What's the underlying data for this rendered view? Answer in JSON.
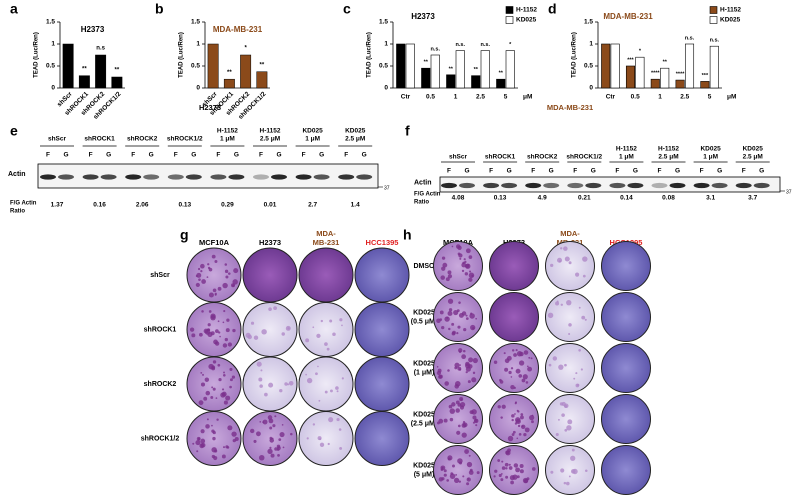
{
  "chart_data": [
    {
      "type": "bar",
      "panel": "a",
      "title": "H2373",
      "title_color": "#000000",
      "ylabel": "TEAD (Luc/Ren)",
      "categories": [
        "shScr",
        "shROCK1",
        "shROCK2",
        "shROCK1/2"
      ],
      "values": [
        1,
        0.28,
        0.75,
        0.25
      ],
      "color": "#000000",
      "ylim": [
        0,
        1.5
      ],
      "yticks": [
        0,
        0.5,
        1,
        1.5
      ],
      "annotations": [
        null,
        "**",
        "n.s",
        "**"
      ]
    },
    {
      "type": "bar",
      "panel": "b",
      "title": "MDA-MB-231",
      "title_color": "#8b4a1a",
      "ylabel": "TEAD (Luc/Ren)",
      "categories": [
        "shScr",
        "shROCK1",
        "shROCK2",
        "shROCK1/2"
      ],
      "values": [
        1,
        0.2,
        0.75,
        0.37
      ],
      "color": "#8b4a1a",
      "ylim": [
        0,
        1.5
      ],
      "yticks": [
        0,
        0.5,
        1,
        1.5
      ],
      "annotations": [
        null,
        "**",
        "*",
        "**"
      ]
    },
    {
      "type": "grouped_bar",
      "panel": "c",
      "title": "H2373",
      "title_color": "#000000",
      "ylabel": "TEAD (Luc/Ren)",
      "xlabel": "μM",
      "categories": [
        "Ctr",
        "0.5",
        "1",
        "2.5",
        "5"
      ],
      "ylim": [
        0,
        1.5
      ],
      "yticks": [
        0,
        0.5,
        1,
        1.5
      ],
      "legend": "upper right",
      "series": [
        {
          "name": "H-1152",
          "color": "#000000",
          "values": [
            1,
            0.45,
            0.3,
            0.28,
            0.2
          ],
          "annotations": [
            null,
            "**",
            "**",
            "**",
            "**"
          ]
        },
        {
          "name": "KD025",
          "color": "#ffffff",
          "values": [
            1,
            0.75,
            0.85,
            0.85,
            0.85
          ],
          "annotations": [
            null,
            "n.s.",
            "n.s.",
            "n.s.",
            "*"
          ]
        }
      ]
    },
    {
      "type": "grouped_bar",
      "panel": "d",
      "title": "MDA-MB-231",
      "title_color": "#8b4a1a",
      "ylabel": "TEAD (Luc/Ren)",
      "xlabel": "μM",
      "categories": [
        "Ctr",
        "0.5",
        "1",
        "2.5",
        "5"
      ],
      "ylim": [
        0,
        1.5
      ],
      "yticks": [
        0,
        0.5,
        1,
        1.5
      ],
      "legend": "upper right",
      "series": [
        {
          "name": "H-1152",
          "color": "#8b4a1a",
          "values": [
            1,
            0.5,
            0.2,
            0.18,
            0.15
          ],
          "annotations": [
            null,
            "***",
            "****",
            "****",
            "***"
          ]
        },
        {
          "name": "KD025",
          "color": "#ffffff",
          "values": [
            1,
            0.7,
            0.45,
            1.0,
            0.95
          ],
          "annotations": [
            null,
            "*",
            "**",
            "n.s.",
            "n.s."
          ]
        }
      ]
    }
  ],
  "blots": [
    {
      "panel": "e",
      "title": "H2373",
      "title_color": "#000000",
      "protein": "Actin",
      "marker": "37",
      "lanes": [
        "F",
        "G"
      ],
      "ratio_label": [
        "F/G Actin",
        "Ratio"
      ],
      "groups": [
        {
          "label": [
            "shScr"
          ],
          "ratio": 1.37
        },
        {
          "label": [
            "shROCK1"
          ],
          "ratio": 0.16
        },
        {
          "label": [
            "shROCK2"
          ],
          "ratio": 2.06
        },
        {
          "label": [
            "shROCK1/2"
          ],
          "ratio": 0.13
        },
        {
          "label": [
            "H-1152",
            "1 μM"
          ],
          "ratio": 0.29
        },
        {
          "label": [
            "H-1152",
            "2.5 μM"
          ],
          "ratio": 0.01
        },
        {
          "label": [
            "KD025",
            "1 μM"
          ],
          "ratio": 2.7
        },
        {
          "label": [
            "KD025",
            "2.5 μM"
          ],
          "ratio": 1.4
        }
      ]
    },
    {
      "panel": "f",
      "title": "MDA-MB-231",
      "title_color": "#8b4a1a",
      "protein": "Actin",
      "marker": "37",
      "lanes": [
        "F",
        "G"
      ],
      "ratio_label": [
        "F/G Actin",
        "Ratio"
      ],
      "groups": [
        {
          "label": [
            "shScr"
          ],
          "ratio": 4.08
        },
        {
          "label": [
            "shROCK1"
          ],
          "ratio": 0.13
        },
        {
          "label": [
            "shROCK2"
          ],
          "ratio": 4.9
        },
        {
          "label": [
            "shROCK1/2"
          ],
          "ratio": 0.21
        },
        {
          "label": [
            "H-1152",
            "1 μM"
          ],
          "ratio": 0.14
        },
        {
          "label": [
            "H-1152",
            "2.5 μM"
          ],
          "ratio": 0.08
        },
        {
          "label": [
            "KD025",
            "1 μM"
          ],
          "ratio": 3.1
        },
        {
          "label": [
            "KD025",
            "2.5 μM"
          ],
          "ratio": 3.7
        }
      ]
    }
  ],
  "plates": [
    {
      "panel": "g",
      "columns": [
        {
          "label": [
            "MCF10A"
          ],
          "color": "#000000"
        },
        {
          "label": [
            "H2373"
          ],
          "color": "#000000"
        },
        {
          "label": [
            "MDA-",
            "MB-231"
          ],
          "color": "#8b4a1a"
        },
        {
          "label": [
            "HCC1395"
          ],
          "color": "#e02020"
        }
      ],
      "rows": [
        [
          "shScr"
        ],
        [
          "shROCK1"
        ],
        [
          "shROCK2"
        ],
        [
          "shROCK1/2"
        ]
      ]
    },
    {
      "panel": "h",
      "columns": [
        {
          "label": [
            "MCF10A"
          ],
          "color": "#000000"
        },
        {
          "label": [
            "H2373"
          ],
          "color": "#000000"
        },
        {
          "label": [
            "MDA-",
            "MB-231"
          ],
          "color": "#8b4a1a"
        },
        {
          "label": [
            "HCC1395"
          ],
          "color": "#e02020"
        }
      ],
      "rows": [
        [
          "DMSO"
        ],
        [
          "KD025",
          "(0.5 μM)"
        ],
        [
          "KD025",
          "(1 μM)"
        ],
        [
          "KD025",
          "(2.5 μM)"
        ],
        [
          "KD025",
          "(5 μM)"
        ]
      ]
    }
  ]
}
